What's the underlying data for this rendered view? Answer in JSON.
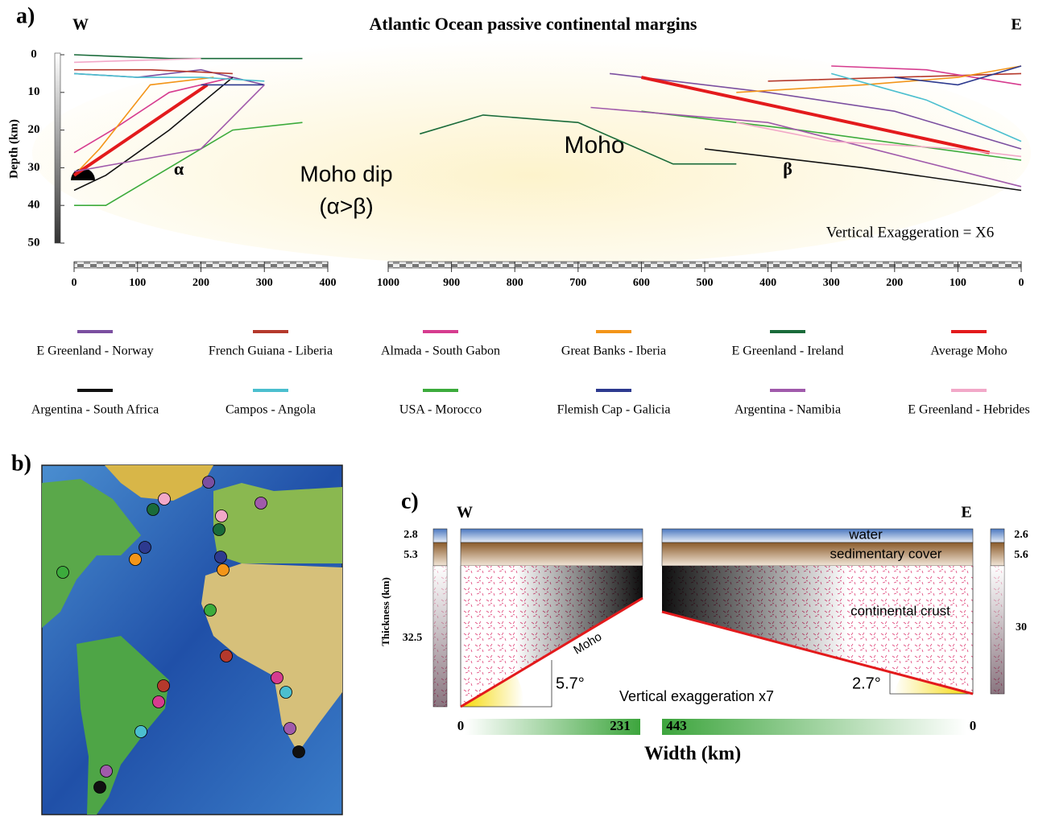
{
  "figure": {
    "panel_labels": [
      "a)",
      "b)",
      "c)"
    ]
  },
  "chart_data": {
    "type": "line",
    "title": "Atlantic Ocean passive continental margins",
    "west_label": "W",
    "east_label": "E",
    "y_label": "Depth (km)",
    "ylim": [
      50,
      0
    ],
    "yticks": [
      0,
      10,
      20,
      30,
      40,
      50
    ],
    "panels": [
      {
        "xlim": [
          0,
          400
        ],
        "xticks": [
          0,
          100,
          200,
          300,
          400
        ]
      },
      {
        "xlim": [
          1000,
          0
        ],
        "xticks": [
          1000,
          900,
          800,
          700,
          600,
          500,
          400,
          300,
          200,
          100,
          0
        ]
      }
    ],
    "annotations": [
      "α",
      "Moho dip",
      "(α>β)",
      "Moho",
      "β",
      "Vertical Exaggeration = X6"
    ],
    "series": [
      {
        "name": "E Greenland - Norway",
        "color": "#7b4fa0",
        "west": {
          "x": [
            0,
            100,
            200,
            300
          ],
          "values": [
            5,
            6,
            4,
            8
          ]
        },
        "east": {
          "x": [
            650,
            400,
            200,
            0
          ],
          "values": [
            5,
            10,
            15,
            25
          ]
        }
      },
      {
        "name": "French Guiana - Liberia",
        "color": "#b5392c",
        "west": {
          "x": [
            0,
            120,
            250
          ],
          "values": [
            4,
            4,
            5
          ]
        },
        "east": {
          "x": [
            400,
            200,
            0
          ],
          "values": [
            7,
            6,
            5
          ]
        }
      },
      {
        "name": "Almada - South Gabon",
        "color": "#d63c8f",
        "west": {
          "x": [
            0,
            60,
            150,
            250
          ],
          "values": [
            26,
            20,
            10,
            6
          ]
        },
        "east": {
          "x": [
            300,
            150,
            0
          ],
          "values": [
            3,
            4,
            8
          ]
        }
      },
      {
        "name": "Great Banks - Iberia",
        "color": "#f39519",
        "west": {
          "x": [
            0,
            40,
            120,
            220
          ],
          "values": [
            32,
            25,
            8,
            6
          ]
        },
        "east": {
          "x": [
            450,
            250,
            100,
            0
          ],
          "values": [
            10,
            8,
            6,
            3
          ]
        }
      },
      {
        "name": "E Greenland - Ireland",
        "color": "#1a6b3a",
        "west": {
          "x": [
            0,
            150,
            360
          ],
          "values": [
            0,
            1,
            1
          ]
        },
        "east": {
          "x": [
            950,
            850,
            700,
            550,
            450
          ],
          "values": [
            21,
            16,
            18,
            29,
            29
          ]
        }
      },
      {
        "name": "Average Moho",
        "color": "#e31a1c",
        "west": {
          "x": [
            0,
            210
          ],
          "values": [
            32,
            8
          ]
        },
        "east": {
          "x": [
            600,
            50
          ],
          "values": [
            6,
            26
          ]
        }
      },
      {
        "name": "Argentina - South Africa",
        "color": "#111111",
        "west": {
          "x": [
            0,
            50,
            150,
            250
          ],
          "values": [
            36,
            32,
            20,
            6
          ]
        },
        "east": {
          "x": [
            500,
            250,
            0
          ],
          "values": [
            25,
            30,
            36
          ]
        }
      },
      {
        "name": "Campos - Angola",
        "color": "#4bbfcf",
        "west": {
          "x": [
            0,
            100,
            200,
            300
          ],
          "values": [
            5,
            6,
            6,
            7
          ]
        },
        "east": {
          "x": [
            300,
            150,
            0
          ],
          "values": [
            5,
            12,
            23
          ]
        }
      },
      {
        "name": "USA - Morocco",
        "color": "#3cab3c",
        "west": {
          "x": [
            0,
            50,
            150,
            250,
            360
          ],
          "values": [
            40,
            40,
            30,
            20,
            18
          ]
        },
        "east": {
          "x": [
            600,
            350,
            0
          ],
          "values": [
            15,
            20,
            28
          ]
        }
      },
      {
        "name": "Flemish Cap - Galicia",
        "color": "#2d3a8f",
        "west": {
          "x": [
            200,
            300
          ],
          "values": [
            8,
            8
          ]
        },
        "east": {
          "x": [
            200,
            100,
            0
          ],
          "values": [
            6,
            8,
            3
          ]
        }
      },
      {
        "name": "Argentina - Namibia",
        "color": "#a05aab",
        "west": {
          "x": [
            0,
            100,
            200,
            300
          ],
          "values": [
            31,
            28,
            25,
            8
          ]
        },
        "east": {
          "x": [
            680,
            400,
            0
          ],
          "values": [
            14,
            18,
            35
          ]
        }
      },
      {
        "name": "E Greenland - Hebrides",
        "color": "#f2a8c8",
        "west": {
          "x": [
            0,
            200
          ],
          "values": [
            2,
            1
          ]
        },
        "east": {
          "x": [
            450,
            300,
            100,
            0
          ],
          "values": [
            18,
            23,
            25,
            27
          ]
        }
      }
    ]
  },
  "panel_c": {
    "west_label": "W",
    "east_label": "E",
    "layers": [
      "water",
      "sedimentary cover",
      "continental crust"
    ],
    "moho_label": "Moho",
    "west_angle": "5.7°",
    "east_angle": "2.7°",
    "exaggeration": "Vertical exaggeration x7",
    "thickness_label": "Thickness (km)",
    "west_thickness": [
      2.8,
      5.3,
      32.5
    ],
    "east_thickness": [
      2.6,
      5.6,
      30
    ],
    "west_width": [
      0,
      231
    ],
    "east_width": [
      443,
      0
    ],
    "width_label": "Width (km)"
  }
}
